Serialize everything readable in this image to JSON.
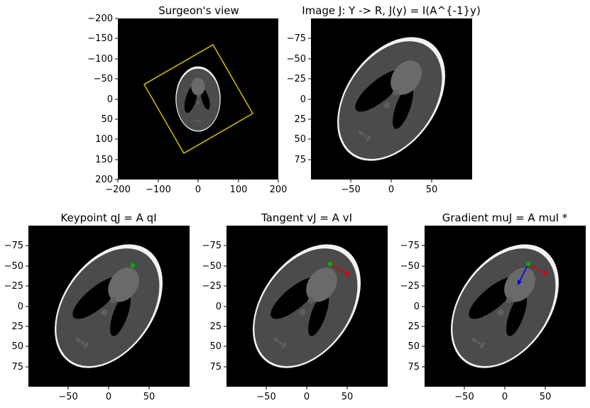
{
  "panels": [
    {
      "id": "surgeon",
      "title": "Surgeon's view",
      "xticks": [
        "−200",
        "−100",
        "0",
        "100",
        "200"
      ],
      "yticks": [
        "−200",
        "−150",
        "−100",
        "−50",
        "0",
        "50",
        "100",
        "150",
        "200"
      ],
      "xlim": [
        -200,
        200
      ],
      "ylim": [
        -200,
        200
      ],
      "overlay": "yellow rotated square frame",
      "frame_color": "#c8b400"
    },
    {
      "id": "imageJ",
      "title": "Image J: Y -> R, J(y) = I(A^{-1}y)",
      "xticks": [
        "−50",
        "0",
        "50"
      ],
      "yticks": [
        "−75",
        "−50",
        "−25",
        "0",
        "25",
        "50",
        "75"
      ]
    },
    {
      "id": "keypoint",
      "title": "Keypoint qJ = A qI",
      "xticks": [
        "−50",
        "0",
        "50"
      ],
      "yticks": [
        "−75",
        "−50",
        "−25",
        "0",
        "25",
        "50",
        "75"
      ],
      "markers": [
        "green keypoint"
      ],
      "keypoint_color": "#00b000"
    },
    {
      "id": "tangent",
      "title": "Tangent vJ = A vI",
      "xticks": [
        "−50",
        "0",
        "50"
      ],
      "yticks": [
        "−75",
        "−50",
        "−25",
        "0",
        "25",
        "50",
        "75"
      ],
      "markers": [
        "green keypoint",
        "red tangent arrow"
      ],
      "tangent_color": "#e00000"
    },
    {
      "id": "gradient",
      "title": "Gradient muJ = A muI *",
      "xticks": [
        "−50",
        "0",
        "50"
      ],
      "yticks": [
        "−75",
        "−50",
        "−25",
        "0",
        "25",
        "50",
        "75"
      ],
      "markers": [
        "green keypoint",
        "red tangent arrow",
        "blue gradient arrow"
      ],
      "gradient_color": "#0000e0"
    }
  ]
}
